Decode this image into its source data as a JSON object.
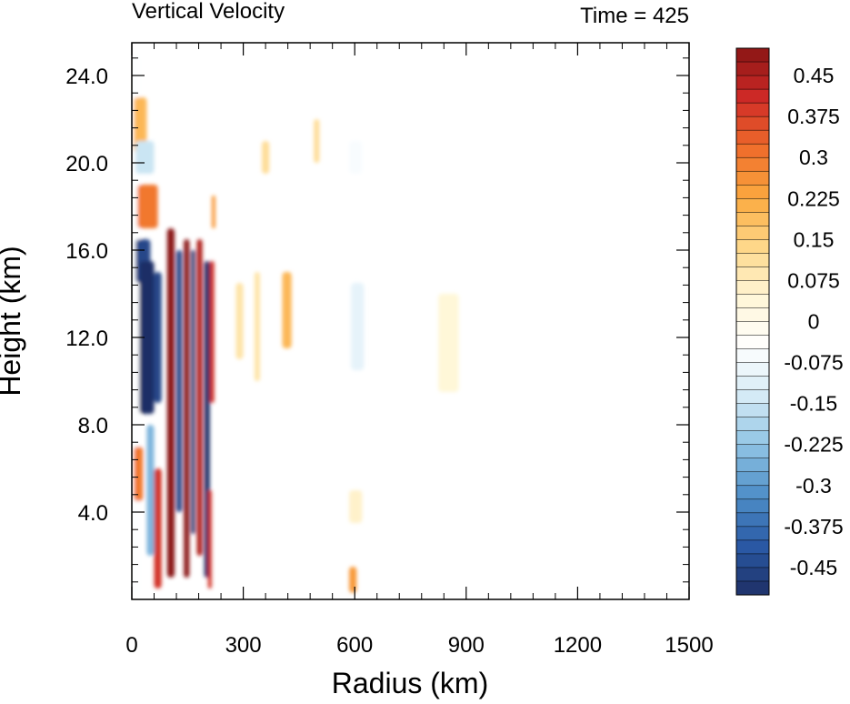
{
  "chart_data": {
    "type": "heatmap",
    "title": "Vertical Velocity",
    "subtitle": "Time = 425",
    "xlabel": "Radius (km)",
    "ylabel": "Height (km)",
    "xlim": [
      0,
      1500
    ],
    "ylim": [
      0,
      25.5
    ],
    "x_ticks": [
      0,
      300,
      600,
      900,
      1200,
      1500
    ],
    "y_ticks": [
      4.0,
      8.0,
      12.0,
      16.0,
      20.0,
      24.0
    ],
    "x_tick_labels": [
      "0",
      "300",
      "600",
      "900",
      "1200",
      "1500"
    ],
    "y_tick_labels": [
      "4.0",
      "8.0",
      "12.0",
      "16.0",
      "20.0",
      "24.0"
    ],
    "colorbar": {
      "levels_min": -0.5,
      "levels_max": 0.5,
      "level_step": 0.025,
      "tick_labels": [
        "0.45",
        "0.375",
        "0.3",
        "0.225",
        "0.15",
        "0.075",
        "0",
        "-0.075",
        "-0.15",
        "-0.225",
        "-0.3",
        "-0.375",
        "-0.45"
      ],
      "tick_values": [
        0.45,
        0.375,
        0.3,
        0.225,
        0.15,
        0.075,
        0,
        -0.075,
        -0.15,
        -0.225,
        -0.3,
        -0.375,
        -0.45
      ],
      "colors": [
        "#1e2f66",
        "#2a5aa6",
        "#4f8fc8",
        "#8fc3e4",
        "#d5ebf6",
        "#ffffff",
        "#fff6d6",
        "#fed88a",
        "#fba93f",
        "#ef6c2b",
        "#cf2a27",
        "#8a1515"
      ]
    },
    "features": [
      {
        "x0": 0,
        "x1": 22,
        "y0": 0.3,
        "y1": 25,
        "value": -0.05
      },
      {
        "x0": 5,
        "x1": 40,
        "y0": 20.5,
        "y1": 23,
        "value": 0.2
      },
      {
        "x0": 10,
        "x1": 60,
        "y0": 19.5,
        "y1": 21,
        "value": -0.15
      },
      {
        "x0": 15,
        "x1": 70,
        "y0": 17,
        "y1": 19,
        "value": 0.3
      },
      {
        "x0": 10,
        "x1": 50,
        "y0": 14.5,
        "y1": 16.5,
        "value": -0.45
      },
      {
        "x0": 20,
        "x1": 60,
        "y0": 8.5,
        "y1": 15.5,
        "value": -0.5
      },
      {
        "x0": 60,
        "x1": 80,
        "y0": 9,
        "y1": 15,
        "value": -0.45
      },
      {
        "x0": 5,
        "x1": 30,
        "y0": 4.5,
        "y1": 7,
        "value": 0.3
      },
      {
        "x0": 40,
        "x1": 60,
        "y0": 2,
        "y1": 8,
        "value": -0.25
      },
      {
        "x0": 60,
        "x1": 80,
        "y0": 0.5,
        "y1": 6,
        "value": 0.4
      },
      {
        "x0": 95,
        "x1": 115,
        "y0": 1,
        "y1": 17,
        "value": 0.5
      },
      {
        "x0": 120,
        "x1": 135,
        "y0": 4,
        "y1": 16,
        "value": -0.45
      },
      {
        "x0": 140,
        "x1": 155,
        "y0": 1,
        "y1": 16.5,
        "value": 0.5
      },
      {
        "x0": 160,
        "x1": 170,
        "y0": 3,
        "y1": 16,
        "value": -0.5
      },
      {
        "x0": 175,
        "x1": 190,
        "y0": 2,
        "y1": 16.5,
        "value": 0.45
      },
      {
        "x0": 195,
        "x1": 210,
        "y0": 1,
        "y1": 15.5,
        "value": -0.5
      },
      {
        "x0": 210,
        "x1": 222,
        "y0": 9,
        "y1": 15.5,
        "value": 0.4
      },
      {
        "x0": 205,
        "x1": 215,
        "y0": 0.5,
        "y1": 5,
        "value": 0.4
      },
      {
        "x0": 215,
        "x1": 225,
        "y0": 17,
        "y1": 18.5,
        "value": 0.25
      },
      {
        "x0": 280,
        "x1": 300,
        "y0": 11,
        "y1": 14.5,
        "value": 0.1
      },
      {
        "x0": 330,
        "x1": 345,
        "y0": 10,
        "y1": 15,
        "value": 0.1
      },
      {
        "x0": 350,
        "x1": 370,
        "y0": 19.5,
        "y1": 21,
        "value": 0.12
      },
      {
        "x0": 405,
        "x1": 430,
        "y0": 11.5,
        "y1": 15,
        "value": 0.2
      },
      {
        "x0": 490,
        "x1": 505,
        "y0": 20,
        "y1": 22,
        "value": 0.12
      },
      {
        "x0": 590,
        "x1": 625,
        "y0": 10.5,
        "y1": 14.5,
        "value": -0.1
      },
      {
        "x0": 585,
        "x1": 620,
        "y0": 19.5,
        "y1": 21,
        "value": -0.06
      },
      {
        "x0": 825,
        "x1": 880,
        "y0": 9.5,
        "y1": 14,
        "value": 0.04
      },
      {
        "x0": 585,
        "x1": 605,
        "y0": 0.3,
        "y1": 1.5,
        "value": 0.25
      },
      {
        "x0": 585,
        "x1": 620,
        "y0": 3.5,
        "y1": 5,
        "value": 0.06
      }
    ]
  }
}
